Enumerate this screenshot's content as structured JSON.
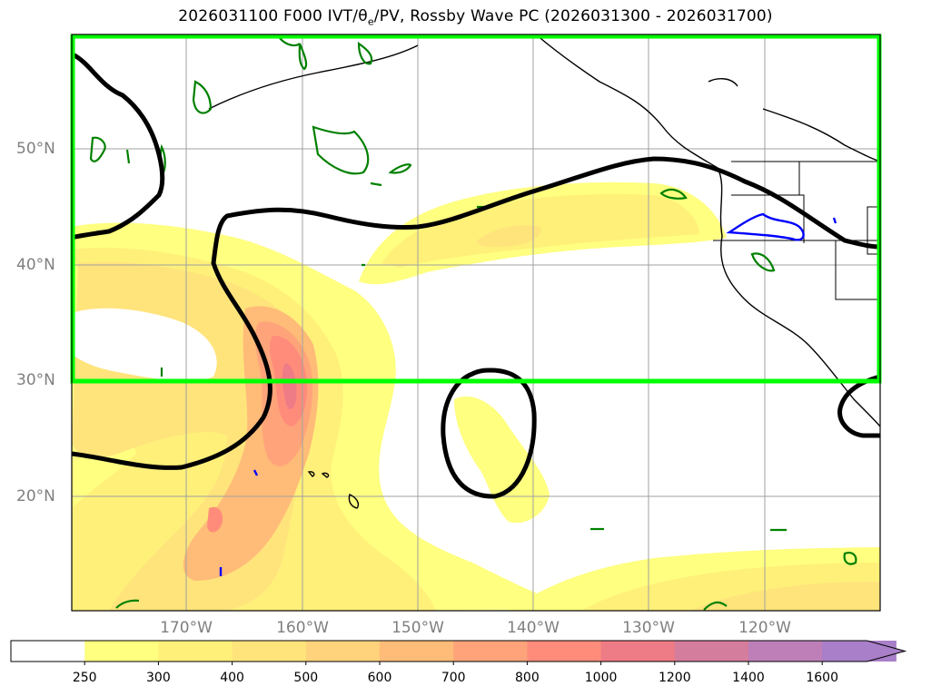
{
  "title": {
    "prefix": "2026031100 F000 IVT/",
    "theta": "θ",
    "sub": "e",
    "suffix": "/PV, Rossby Wave PC (2026031300 - 2026031700)"
  },
  "colors": {
    "box": "#00ff00",
    "contour_black": "#000000",
    "contour_green": "#008000",
    "contour_blue": "#0000ff",
    "grid": "#a0a0a0",
    "coast": "#000000"
  },
  "chart_data": {
    "type": "heatmap",
    "variable": "IVT",
    "lat_ticks": [
      {
        "value": 50,
        "label": "50°N"
      },
      {
        "value": 40,
        "label": "40°N"
      },
      {
        "value": 30,
        "label": "30°N"
      },
      {
        "value": 20,
        "label": "20°N"
      }
    ],
    "lon_ticks": [
      {
        "value": -170,
        "label": "170°W"
      },
      {
        "value": -160,
        "label": "160°W"
      },
      {
        "value": -150,
        "label": "150°W"
      },
      {
        "value": -140,
        "label": "140°W"
      },
      {
        "value": -130,
        "label": "130°W"
      },
      {
        "value": -120,
        "label": "120°W"
      }
    ],
    "lat_range": [
      10,
      60
    ],
    "lon_range": [
      -180,
      -110
    ],
    "highlight_box": {
      "lat": [
        30,
        60
      ],
      "lon": [
        -180,
        -110
      ]
    },
    "colorbar": {
      "levels": [
        250,
        300,
        400,
        500,
        600,
        700,
        800,
        1000,
        1200,
        1400,
        1600
      ],
      "colors": [
        "#ffff80",
        "#fff07a",
        "#ffe47c",
        "#ffd27c",
        "#ffbb78",
        "#ffa47a",
        "#ff8c7a",
        "#ee7c86",
        "#d47d9c",
        "#be7fb8",
        "#a87fc8"
      ],
      "extend": "max"
    }
  }
}
